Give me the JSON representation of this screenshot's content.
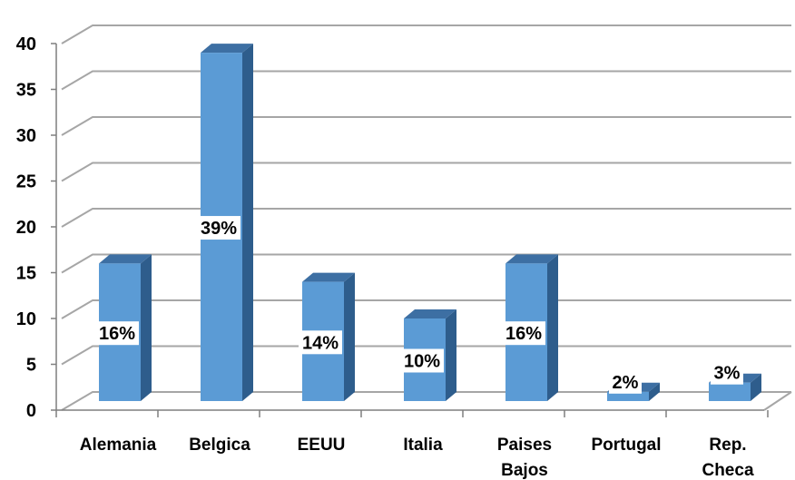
{
  "chart_data": {
    "type": "bar",
    "categories": [
      "Alemania",
      "Belgica",
      "EEUU",
      "Italia",
      "Paises Bajos",
      "Portugal",
      "Rep. Checa"
    ],
    "values": [
      16,
      39,
      14,
      10,
      16,
      2,
      3
    ],
    "data_labels": [
      "16%",
      "39%",
      "14%",
      "10%",
      "16%",
      "2%",
      "3%"
    ],
    "y_ticks": [
      0,
      5,
      10,
      15,
      20,
      25,
      30,
      35,
      40
    ],
    "ylim": [
      0,
      40
    ],
    "grid": true,
    "legend": false,
    "three_d": true,
    "colors": {
      "bar_front": "#5b9bd5",
      "bar_side": "#2e5d8c",
      "bar_top": "#3d6fa3",
      "grid": "#a6a6a6",
      "label_box": "#ffffff"
    }
  }
}
